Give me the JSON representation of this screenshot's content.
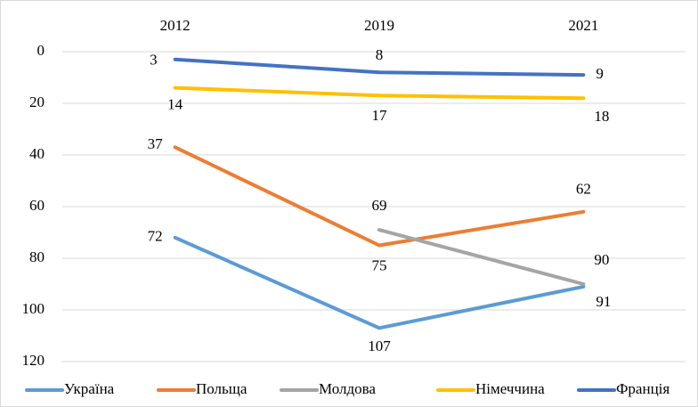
{
  "chart_data": {
    "type": "line",
    "categories": [
      "2012",
      "2019",
      "2021"
    ],
    "series": [
      {
        "name": "Україна",
        "color": "#5b9bd5",
        "values": [
          72,
          107,
          91
        ]
      },
      {
        "name": "Польща",
        "color": "#ed7d31",
        "values": [
          37,
          75,
          62
        ]
      },
      {
        "name": "Молдова",
        "color": "#a5a5a5",
        "values": [
          null,
          69,
          90
        ]
      },
      {
        "name": "Німеччина",
        "color": "#ffc000",
        "values": [
          14,
          17,
          18
        ]
      },
      {
        "name": "Франція",
        "color": "#4472c4",
        "values": [
          3,
          8,
          9
        ]
      }
    ],
    "ylim": [
      0,
      120
    ],
    "yticks": [
      0,
      20,
      40,
      60,
      80,
      100,
      120
    ],
    "y_inverted": true,
    "grid": true,
    "legend": "bottom",
    "data_labels": true
  }
}
